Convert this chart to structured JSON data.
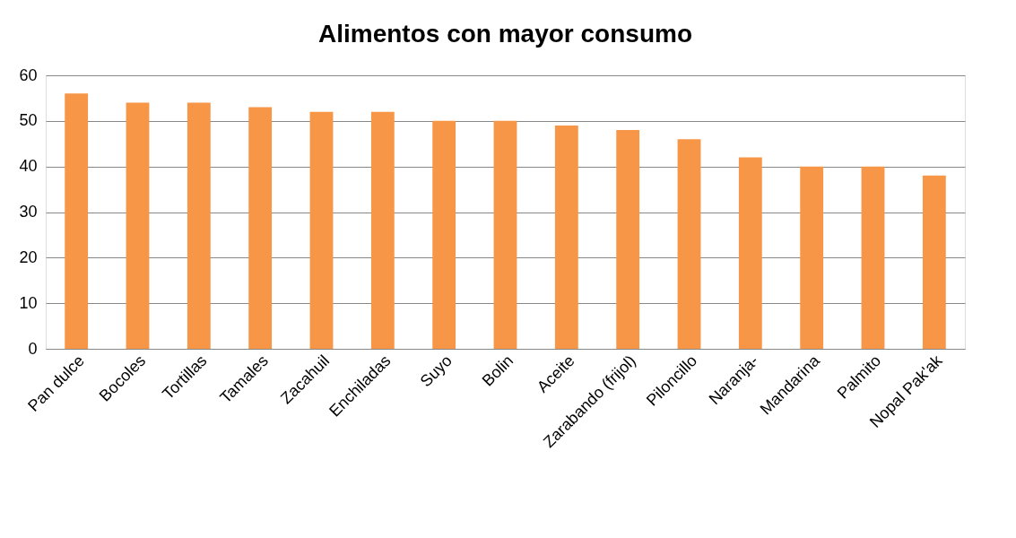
{
  "chart_data": {
    "type": "bar",
    "title": "Alimentos con mayor consumo",
    "categories": [
      "Pan dulce",
      "Bocoles",
      "Tortillas",
      "Tamales",
      "Zacahuil",
      "Enchiladas",
      "Suyo",
      "Bolin",
      "Aceite",
      "Zarabando (frijol)",
      "Piloncillo",
      "Naranja-",
      "Mandarina",
      "Palmito",
      "Nopal Pak'ak"
    ],
    "values": [
      56,
      54,
      54,
      53,
      52,
      52,
      50,
      50,
      49,
      48,
      46,
      42,
      40,
      40,
      38
    ],
    "color": "#f79646",
    "ylim": [
      0,
      60
    ],
    "yticks": [
      0,
      10,
      20,
      30,
      40,
      50,
      60
    ],
    "grid": "y"
  }
}
